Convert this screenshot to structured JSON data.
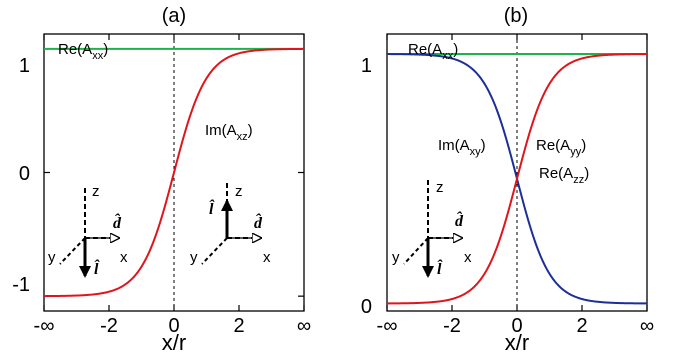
{
  "figure": {
    "xlabel": "x/r"
  },
  "colors": {
    "green": "#1db34a",
    "red": "#e0151b",
    "blue": "#1c2f99",
    "black": "#000000"
  },
  "chart_data": [
    {
      "type": "line",
      "title": "(a)",
      "xlabel": "x/r",
      "ylabel": "",
      "xlim": [
        -4,
        4
      ],
      "ylim": [
        -1.12,
        1.12
      ],
      "x_ticks": [
        {
          "value": -4,
          "label": "-∞"
        },
        {
          "value": -2,
          "label": "-2"
        },
        {
          "value": 0,
          "label": "0"
        },
        {
          "value": 2,
          "label": "2"
        },
        {
          "value": 4,
          "label": "∞"
        }
      ],
      "y_ticks": [
        {
          "value": -1,
          "label": "-1"
        },
        {
          "value": 0,
          "label": "0"
        },
        {
          "value": 1,
          "label": "1"
        }
      ],
      "vline_x": 0,
      "series": [
        {
          "name": "Re(A_xx)",
          "color": "#1db34a",
          "function": "constant",
          "value": 1
        },
        {
          "name": "Im(A_xz)",
          "color": "#e0151b",
          "function": "tanh",
          "x": [
            -4,
            -3,
            -2,
            -1,
            0,
            1,
            2,
            3,
            4
          ],
          "values": [
            -1.0,
            -0.995,
            -0.96,
            -0.76,
            0.0,
            0.76,
            0.96,
            0.995,
            1.0
          ]
        }
      ],
      "labels": [
        {
          "id": "re_axx",
          "base": "Re(A",
          "sub": "xx",
          "end": ")"
        },
        {
          "id": "im_axz",
          "base": "Im(A",
          "sub": "xz",
          "end": ")"
        }
      ],
      "insets": [
        {
          "z": "z",
          "y": "y",
          "x": "x",
          "d": "d̂",
          "l": "l̂",
          "l_direction": "down"
        },
        {
          "z": "z",
          "y": "y",
          "x": "x",
          "d": "d̂",
          "l": "l̂",
          "l_direction": "up"
        }
      ]
    },
    {
      "type": "line",
      "title": "(b)",
      "xlabel": "x/r",
      "ylabel": "",
      "xlim": [
        -4,
        4
      ],
      "ylim": [
        -0.03,
        1.08
      ],
      "x_ticks": [
        {
          "value": -4,
          "label": "-∞"
        },
        {
          "value": -2,
          "label": "-2"
        },
        {
          "value": 0,
          "label": "0"
        },
        {
          "value": 2,
          "label": "2"
        },
        {
          "value": 4,
          "label": "∞"
        }
      ],
      "y_ticks": [
        {
          "value": 0,
          "label": "0"
        },
        {
          "value": 1,
          "label": "1"
        }
      ],
      "vline_x": 0,
      "series": [
        {
          "name": "Re(A_xx)",
          "color": "#1db34a",
          "function": "constant",
          "value": 1
        },
        {
          "name": "Im(A_xy)",
          "color": "#1c2f99",
          "function": "decreasing_sigmoid",
          "x": [
            -4,
            -3,
            -2,
            -1,
            0,
            1,
            2,
            3,
            4
          ],
          "values": [
            1.0,
            0.997,
            0.98,
            0.88,
            0.5,
            0.12,
            0.02,
            0.003,
            0.0
          ]
        },
        {
          "name": "Re(A_yy), Re(A_zz)",
          "color": "#e0151b",
          "function": "increasing_sigmoid",
          "x": [
            -4,
            -3,
            -2,
            -1,
            0,
            1,
            2,
            3,
            4
          ],
          "values": [
            0.0,
            0.003,
            0.02,
            0.12,
            0.5,
            0.88,
            0.98,
            0.997,
            1.0
          ]
        }
      ],
      "labels": [
        {
          "id": "re_axx",
          "base": "Re(A",
          "sub": "xx",
          "end": ")"
        },
        {
          "id": "im_axy",
          "base": "Im(A",
          "sub": "xy",
          "end": ")"
        },
        {
          "id": "re_ayy",
          "base": "Re(A",
          "sub": "yy",
          "end": ")"
        },
        {
          "id": "re_azz",
          "base": "Re(A",
          "sub": "zz",
          "end": ")"
        }
      ],
      "insets": [
        {
          "z": "z",
          "y": "y",
          "x": "x",
          "d": "d̂",
          "l": "l̂",
          "l_direction": "down"
        }
      ]
    }
  ]
}
